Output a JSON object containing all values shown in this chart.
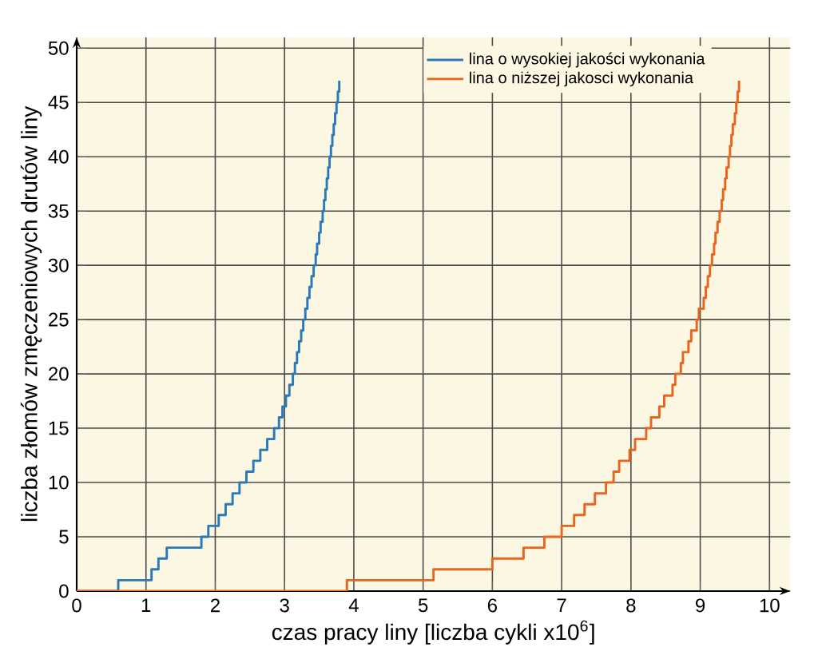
{
  "chart_data": {
    "type": "step",
    "xlabel": "czas pracy liny [liczba cykli x10$^{6}$]",
    "ylabel": "liczba złomów zmęczeniowych drutów liny",
    "xlim": [
      0,
      10.3
    ],
    "ylim": [
      0,
      51
    ],
    "xticks": [
      0,
      1,
      2,
      3,
      4,
      5,
      6,
      7,
      8,
      9,
      10
    ],
    "yticks": [
      0,
      5,
      10,
      15,
      20,
      25,
      30,
      35,
      40,
      45,
      50
    ],
    "grid": true,
    "legend": "top right",
    "series": [
      {
        "name": "lina o wysokiej jakości wykonania",
        "color": "#2a7ab9",
        "x": [
          0,
          0.6,
          1.08,
          1.18,
          1.3,
          1.8,
          1.9,
          2.05,
          2.15,
          2.25,
          2.35,
          2.45,
          2.55,
          2.65,
          2.75,
          2.85,
          2.92,
          2.97,
          3.02,
          3.07,
          3.12,
          3.15,
          3.18,
          3.21,
          3.24,
          3.27,
          3.3,
          3.33,
          3.36,
          3.39,
          3.42,
          3.45,
          3.47,
          3.5,
          3.52,
          3.55,
          3.57,
          3.59,
          3.61,
          3.63,
          3.65,
          3.67,
          3.69,
          3.71,
          3.73,
          3.75,
          3.77,
          3.79
        ],
        "values": [
          0,
          1,
          2,
          3,
          4,
          5,
          6,
          7,
          8,
          9,
          10,
          11,
          12,
          13,
          14,
          15,
          16,
          17,
          18,
          19,
          20,
          21,
          22,
          23,
          24,
          25,
          26,
          27,
          28,
          29,
          30,
          31,
          32,
          33,
          34,
          35,
          36,
          37,
          38,
          39,
          40,
          41,
          42,
          43,
          44,
          45,
          46,
          47
        ]
      },
      {
        "name": "lina o niższej jakosci wykonania",
        "color": "#e8651e",
        "x": [
          0,
          3.9,
          5.15,
          6.0,
          6.45,
          6.75,
          7.0,
          7.18,
          7.33,
          7.48,
          7.64,
          7.75,
          7.83,
          7.98,
          8.06,
          8.22,
          8.29,
          8.41,
          8.48,
          8.6,
          8.64,
          8.72,
          8.75,
          8.83,
          8.87,
          8.95,
          8.98,
          9.05,
          9.08,
          9.11,
          9.14,
          9.17,
          9.2,
          9.22,
          9.25,
          9.28,
          9.31,
          9.33,
          9.36,
          9.38,
          9.41,
          9.43,
          9.45,
          9.47,
          9.5,
          9.52,
          9.54,
          9.56
        ],
        "values": [
          0,
          1,
          2,
          3,
          4,
          5,
          6,
          7,
          8,
          9,
          10,
          11,
          12,
          13,
          14,
          15,
          16,
          17,
          18,
          19,
          20,
          21,
          22,
          23,
          24,
          25,
          26,
          27,
          28,
          29,
          30,
          31,
          32,
          33,
          34,
          35,
          36,
          37,
          38,
          39,
          40,
          41,
          42,
          43,
          44,
          45,
          46,
          47
        ]
      }
    ]
  }
}
